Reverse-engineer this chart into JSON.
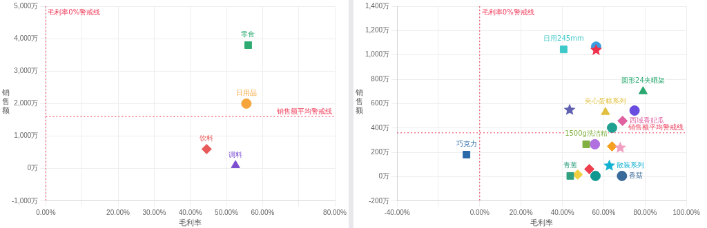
{
  "chart_data": [
    {
      "type": "scatter",
      "xlabel": "毛利率",
      "ylabel": "销售额",
      "xlim": [
        0,
        80
      ],
      "ylim": [
        -1000,
        5000
      ],
      "xticks": [
        {
          "value": 0,
          "label": "0.00%"
        },
        {
          "value": 10,
          "label": null
        },
        {
          "value": 20,
          "label": "20.00%"
        },
        {
          "value": 30,
          "label": "30.00%"
        },
        {
          "value": 40,
          "label": "40.00%"
        },
        {
          "value": 50,
          "label": "50.00%"
        },
        {
          "value": 60,
          "label": "60.00%"
        },
        {
          "value": 70,
          "label": null
        },
        {
          "value": 80,
          "label": "80.00%"
        }
      ],
      "yticks": [
        {
          "value": -1000,
          "label": "-1,000万"
        },
        {
          "value": 0,
          "label": "0万"
        },
        {
          "value": 1000,
          "label": "1,000万"
        },
        {
          "value": 2000,
          "label": "2,000万"
        },
        {
          "value": 3000,
          "label": "3,000万"
        },
        {
          "value": 4000,
          "label": "4,000万"
        },
        {
          "value": 5000,
          "label": "5,000万"
        }
      ],
      "grid": true,
      "legend": false,
      "ref_lines": [
        {
          "axis": "x",
          "value": 0,
          "label": "毛利率0%警戒线",
          "color": "#f03c5a",
          "line_style": "dotted"
        },
        {
          "axis": "y",
          "value": 1600,
          "label": "销售额平均警戒线",
          "color": "#f03c5a",
          "line_style": "dotted"
        }
      ],
      "series": [
        {
          "name": "零食",
          "color": "#2eaa72",
          "x": [
            56
          ],
          "values": [
            3800
          ],
          "marker": "square"
        },
        {
          "name": "日用品",
          "color": "#f5a53a",
          "x": [
            55.5
          ],
          "values": [
            2000
          ],
          "marker": "circle"
        },
        {
          "name": "饮料",
          "color": "#e85a5a",
          "x": [
            44.5
          ],
          "values": [
            600
          ],
          "marker": "diamond"
        },
        {
          "name": "调料",
          "color": "#7b4fd0",
          "x": [
            52.5
          ],
          "values": [
            100
          ],
          "marker": "triangle"
        }
      ]
    },
    {
      "type": "scatter",
      "xlabel": "毛利率",
      "ylabel": "销售额",
      "xlim": [
        -40,
        100
      ],
      "ylim": [
        -200,
        1400
      ],
      "xticks": [
        {
          "value": -40,
          "label": "-40.00%"
        },
        {
          "value": -20,
          "label": null
        },
        {
          "value": 0,
          "label": "0.00%"
        },
        {
          "value": 20,
          "label": "20.00%"
        },
        {
          "value": 40,
          "label": "40.00%"
        },
        {
          "value": 60,
          "label": "60.00%"
        },
        {
          "value": 80,
          "label": "80.00%"
        },
        {
          "value": 100,
          "label": "100.00%"
        }
      ],
      "yticks": [
        {
          "value": -200,
          "label": "-200万"
        },
        {
          "value": 0,
          "label": "0万"
        },
        {
          "value": 200,
          "label": "200万"
        },
        {
          "value": 400,
          "label": "400万"
        },
        {
          "value": 600,
          "label": "600万"
        },
        {
          "value": 800,
          "label": "800万"
        },
        {
          "value": 1000,
          "label": "1,000万"
        },
        {
          "value": 1200,
          "label": "1,200万"
        },
        {
          "value": 1400,
          "label": "1,400万"
        }
      ],
      "grid": true,
      "legend": false,
      "ref_lines": [
        {
          "axis": "x",
          "value": 0,
          "label": "毛利率0%警戒线",
          "color": "#f03c5a",
          "line_style": "dotted"
        },
        {
          "axis": "y",
          "value": 360,
          "label": "销售额平均警戒线",
          "color": "#f03c5a",
          "line_style": "dotted"
        }
      ],
      "series": [
        {
          "name": "日用245mm",
          "color": "#3fc8c8",
          "x": [
            40.6
          ],
          "values": [
            1045
          ],
          "marker": "square"
        },
        {
          "color": "#3a9de0",
          "x": [
            56.3
          ],
          "values": [
            1068
          ],
          "marker": "circle"
        },
        {
          "color": "#f0304a",
          "x": [
            56.3
          ],
          "values": [
            1040
          ],
          "marker": "star"
        },
        {
          "name": "圆形24夹晒架",
          "color": "#2aa870",
          "x": [
            79
          ],
          "values": [
            700
          ],
          "marker": "triangle"
        },
        {
          "name": "夹心蛋糕系列",
          "color": "#e0c040",
          "x": [
            60.8
          ],
          "values": [
            530
          ],
          "marker": "triangle"
        },
        {
          "color": "#6060b0",
          "x": [
            43.5
          ],
          "values": [
            548
          ],
          "marker": "star"
        },
        {
          "color": "#6a4ce0",
          "x": [
            74.9
          ],
          "values": [
            543
          ],
          "marker": "circle"
        },
        {
          "name": "西域香妃瓜",
          "color": "#e060a0",
          "x": [
            69.1
          ],
          "values": [
            458
          ],
          "marker": "diamond"
        },
        {
          "color": "#20a090",
          "x": [
            64
          ],
          "values": [
            401
          ],
          "marker": "circle"
        },
        {
          "name": "1500g洗洁精",
          "color": "#80b040",
          "x": [
            51.5
          ],
          "values": [
            266
          ],
          "marker": "square"
        },
        {
          "color": "#b070e0",
          "x": [
            55.7
          ],
          "values": [
            266
          ],
          "marker": "circle"
        },
        {
          "color": "#f5a020",
          "x": [
            64
          ],
          "values": [
            249
          ],
          "marker": "diamond"
        },
        {
          "color": "#f0a0c0",
          "x": [
            68
          ],
          "values": [
            237
          ],
          "marker": "star"
        },
        {
          "name": "散装系列",
          "color": "#10b0d0",
          "x": [
            62.7
          ],
          "values": [
            90
          ],
          "marker": "star"
        },
        {
          "name": "香菇",
          "color": "#3a6a9a",
          "x": [
            68.8
          ],
          "values": [
            6
          ],
          "marker": "circle"
        },
        {
          "name": "青葱",
          "color": "#30a080",
          "x": [
            43.8
          ],
          "values": [
            6
          ],
          "marker": "square"
        },
        {
          "color": "#f0d040",
          "x": [
            47.4
          ],
          "values": [
            17
          ],
          "marker": "diamond"
        },
        {
          "color": "#f04050",
          "x": [
            53
          ],
          "values": [
            62
          ],
          "marker": "diamond"
        },
        {
          "color": "#109890",
          "x": [
            56
          ],
          "values": [
            6
          ],
          "marker": "circle"
        },
        {
          "name": "巧克力",
          "color": "#2a6aa8",
          "x": [
            -6.4
          ],
          "values": [
            181
          ],
          "marker": "square"
        }
      ]
    }
  ]
}
